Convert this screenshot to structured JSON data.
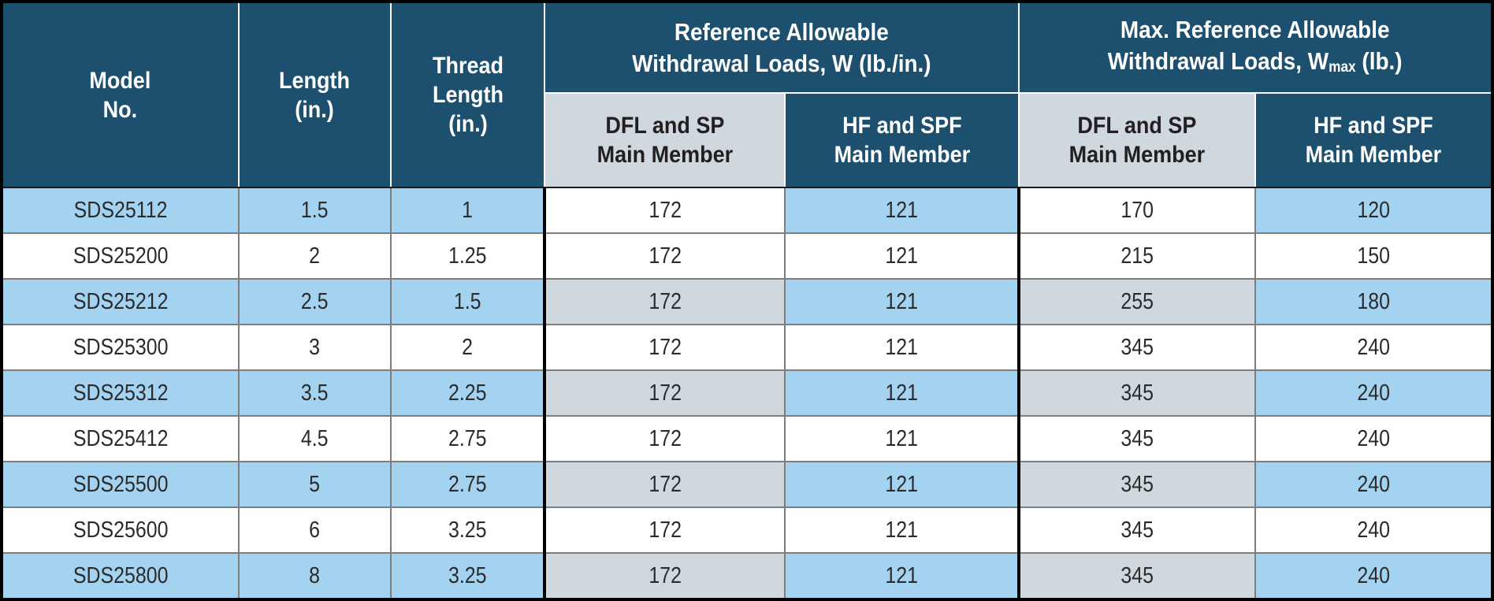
{
  "table": {
    "header": {
      "model": {
        "line1": "Model",
        "line2": "No."
      },
      "length": {
        "line1": "Length",
        "line2": "(in.)"
      },
      "thread": {
        "line1": "Thread",
        "line2": "Length",
        "line3": "(in.)"
      },
      "ref_group": {
        "line1": "Reference Allowable",
        "line2": "Withdrawal Loads, W (lb./in.)"
      },
      "max_group": {
        "line1": "Max. Reference Allowable",
        "line2_pre": "Withdrawal Loads, W",
        "line2_sub": "max",
        "line2_post": " (lb.)"
      },
      "sub_dfl": {
        "line1": "DFL and SP",
        "line2": "Main Member"
      },
      "sub_hf": {
        "line1": "HF and SPF",
        "line2": "Main Member"
      }
    },
    "rows": [
      {
        "model": "SDS25112",
        "length": "1.5",
        "thread_length": "1",
        "ref_dfl_sp": "172",
        "ref_hf_spf": "121",
        "max_dfl_sp": "170",
        "max_hf_spf": "120",
        "shaded": true,
        "dfl_gray": false
      },
      {
        "model": "SDS25200",
        "length": "2",
        "thread_length": "1.25",
        "ref_dfl_sp": "172",
        "ref_hf_spf": "121",
        "max_dfl_sp": "215",
        "max_hf_spf": "150",
        "shaded": false,
        "dfl_gray": false
      },
      {
        "model": "SDS25212",
        "length": "2.5",
        "thread_length": "1.5",
        "ref_dfl_sp": "172",
        "ref_hf_spf": "121",
        "max_dfl_sp": "255",
        "max_hf_spf": "180",
        "shaded": true,
        "dfl_gray": true
      },
      {
        "model": "SDS25300",
        "length": "3",
        "thread_length": "2",
        "ref_dfl_sp": "172",
        "ref_hf_spf": "121",
        "max_dfl_sp": "345",
        "max_hf_spf": "240",
        "shaded": false,
        "dfl_gray": false
      },
      {
        "model": "SDS25312",
        "length": "3.5",
        "thread_length": "2.25",
        "ref_dfl_sp": "172",
        "ref_hf_spf": "121",
        "max_dfl_sp": "345",
        "max_hf_spf": "240",
        "shaded": true,
        "dfl_gray": true
      },
      {
        "model": "SDS25412",
        "length": "4.5",
        "thread_length": "2.75",
        "ref_dfl_sp": "172",
        "ref_hf_spf": "121",
        "max_dfl_sp": "345",
        "max_hf_spf": "240",
        "shaded": false,
        "dfl_gray": false
      },
      {
        "model": "SDS25500",
        "length": "5",
        "thread_length": "2.75",
        "ref_dfl_sp": "172",
        "ref_hf_spf": "121",
        "max_dfl_sp": "345",
        "max_hf_spf": "240",
        "shaded": true,
        "dfl_gray": true
      },
      {
        "model": "SDS25600",
        "length": "6",
        "thread_length": "3.25",
        "ref_dfl_sp": "172",
        "ref_hf_spf": "121",
        "max_dfl_sp": "345",
        "max_hf_spf": "240",
        "shaded": false,
        "dfl_gray": false
      },
      {
        "model": "SDS25800",
        "length": "8",
        "thread_length": "3.25",
        "ref_dfl_sp": "172",
        "ref_hf_spf": "121",
        "max_dfl_sp": "345",
        "max_hf_spf": "240",
        "shaded": true,
        "dfl_gray": true
      }
    ],
    "colors": {
      "header_teal": "#1d506e",
      "row_blue": "#a3d3f1",
      "cell_gray": "#cfd8de",
      "grid_gray": "#7d7d7d",
      "divider_black": "#000000",
      "header_text": "#ffffff",
      "body_text": "#2b2b2b"
    }
  }
}
